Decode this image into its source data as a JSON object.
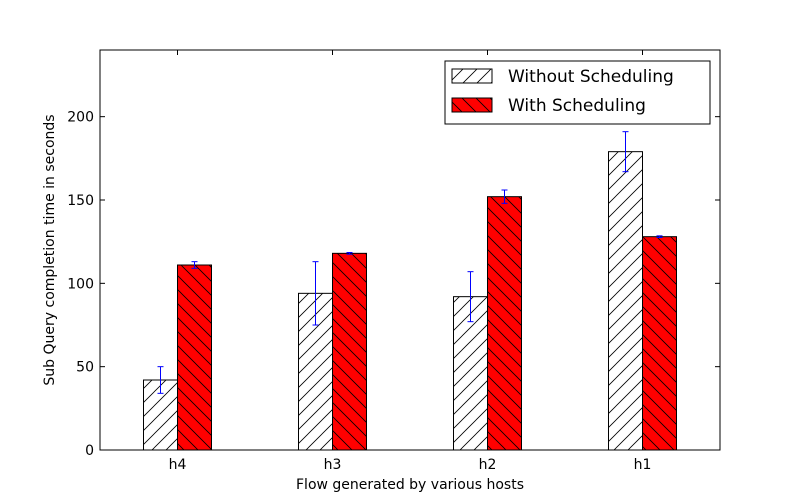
{
  "chart_data": {
    "type": "bar",
    "categories": [
      "h4",
      "h3",
      "h2",
      "h1"
    ],
    "series": [
      {
        "name": "Without Scheduling",
        "values": [
          42,
          94,
          92,
          179
        ],
        "errors": [
          8,
          19,
          15,
          12
        ],
        "fill": "#ffffff",
        "hatch": "/"
      },
      {
        "name": "With Scheduling",
        "values": [
          111,
          118,
          152,
          128
        ],
        "errors": [
          2,
          0.5,
          4,
          0.5
        ],
        "fill": "#ff0000",
        "hatch": "\\"
      }
    ],
    "xlabel": "Flow generated by various hosts",
    "ylabel": "Sub Query completion time in seconds",
    "ylim": [
      0,
      240
    ],
    "yticks": [
      0,
      50,
      100,
      150,
      200
    ],
    "grid": false,
    "legend": "top-right",
    "error_color": "#0000ff"
  }
}
